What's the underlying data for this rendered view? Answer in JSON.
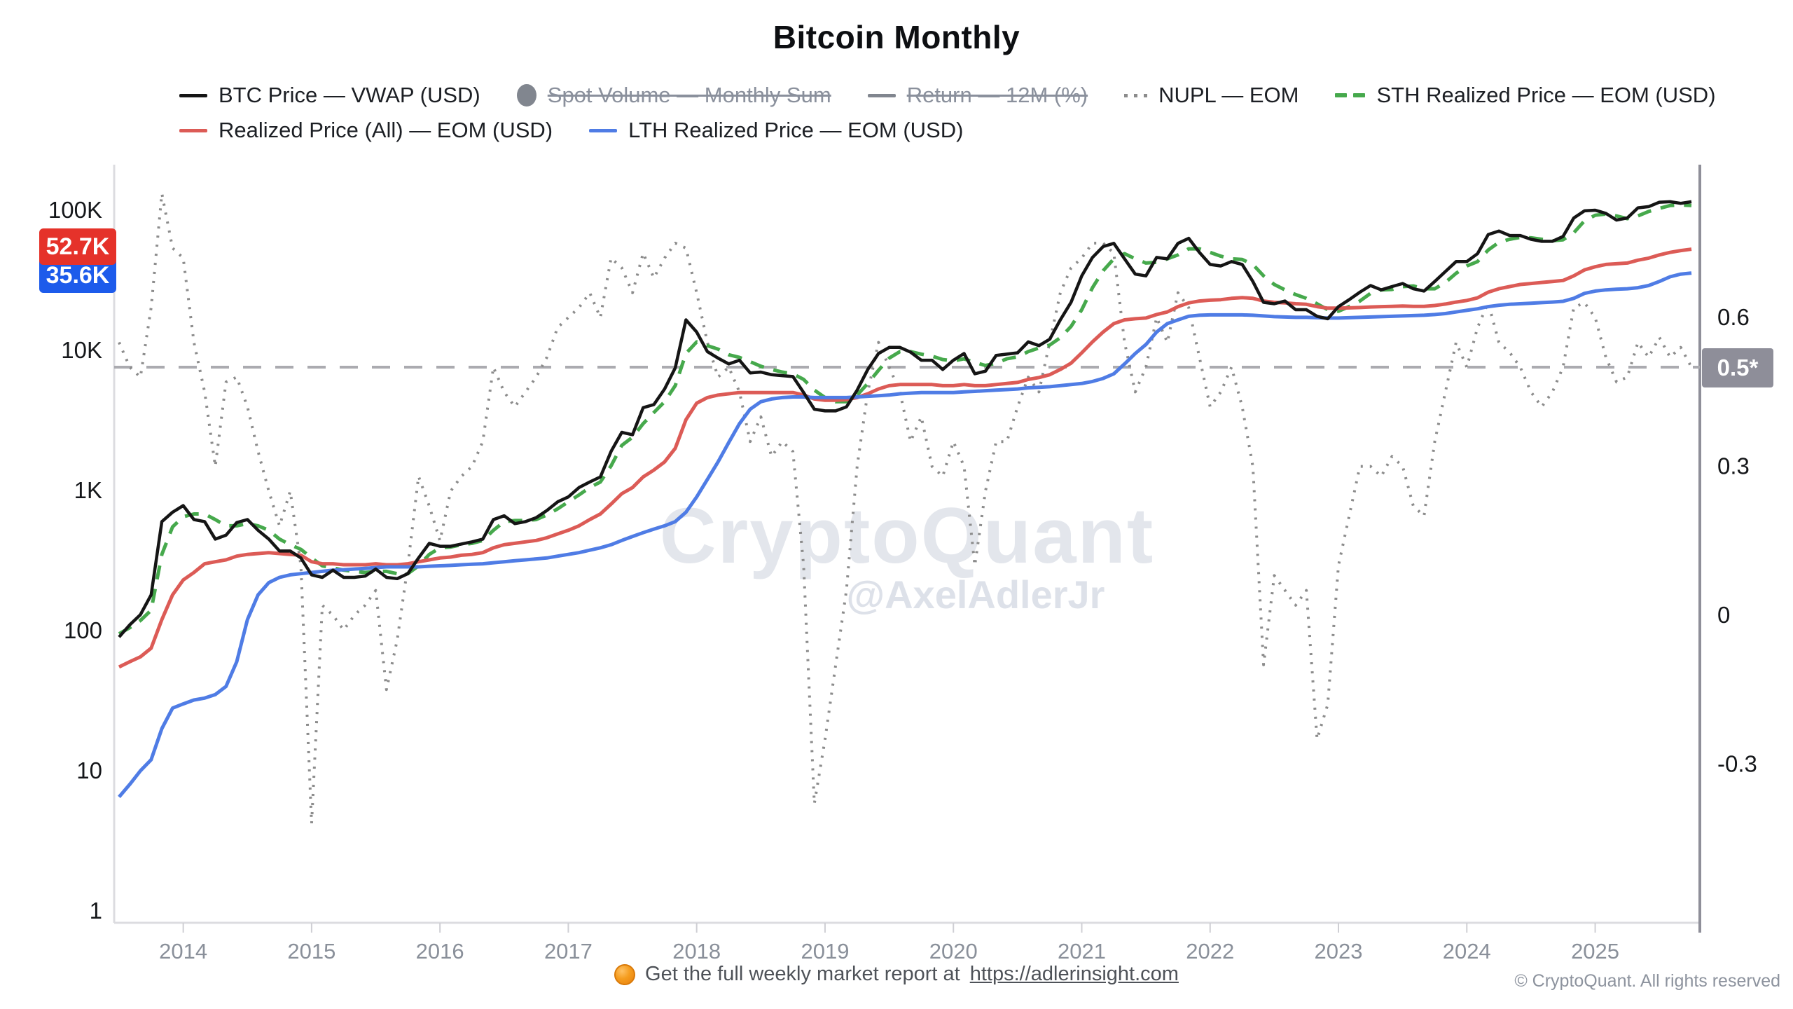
{
  "title": "Bitcoin Monthly",
  "legend": {
    "rows": [
      [
        {
          "label": "BTC Price — VWAP (USD)",
          "marker": "line",
          "color": "#151515",
          "disabled": false
        },
        {
          "label": "Spot Volume — Monthly Sum",
          "marker": "circle",
          "color": "#81868f",
          "disabled": true
        },
        {
          "label": "Return — 12M (%)",
          "marker": "line",
          "color": "#81868f",
          "disabled": true
        },
        {
          "label": "NUPL — EOM",
          "marker": "dots",
          "color": "#8c8c8c",
          "disabled": false
        },
        {
          "label": "STH Realized Price — EOM (USD)",
          "marker": "dashes",
          "color": "#46a94c",
          "disabled": false
        }
      ],
      [
        {
          "label": "Realized Price (All) — EOM (USD)",
          "marker": "line",
          "color": "#dc5b56",
          "disabled": false
        },
        {
          "label": "LTH Realized Price — EOM (USD)",
          "marker": "line",
          "color": "#4f7ce5",
          "disabled": false
        }
      ]
    ]
  },
  "badges": {
    "realized_price_last": "52.7K",
    "realized_price_color": "#e5322a",
    "lth_realized_last": "35.6K",
    "lth_realized_color": "#1d5beb",
    "nupl_last": "0.5*",
    "nupl_badge_color": "#8e8e99"
  },
  "watermark": {
    "brand": "CryptoQuant",
    "handle": "@AxelAdlerJr"
  },
  "footer": {
    "report_text": "Get the full weekly market report at",
    "report_url": "https://adlerinsight.com",
    "copyright": "© CryptoQuant. All rights reserved"
  },
  "chart_data": {
    "type": "line",
    "title": "Bitcoin Monthly",
    "x_start": "2013-07",
    "x_end": "2025-10",
    "x_freq": "monthly",
    "x_tick_labels": [
      "2014",
      "2015",
      "2016",
      "2017",
      "2018",
      "2019",
      "2020",
      "2021",
      "2022",
      "2023",
      "2024",
      "2025"
    ],
    "left_axis": {
      "scale": "log",
      "range": [
        1,
        150000
      ],
      "ticks": [
        {
          "label": "100K",
          "value": 100000
        },
        {
          "label": "10K",
          "value": 10000
        },
        {
          "label": "1K",
          "value": 1000
        },
        {
          "label": "100",
          "value": 100
        },
        {
          "label": "10",
          "value": 10
        },
        {
          "label": "1",
          "value": 1
        }
      ]
    },
    "right_axis": {
      "scale": "linear",
      "range": [
        -0.45,
        0.9
      ],
      "ticks": [
        {
          "label": "0.6",
          "value": 0.6
        },
        {
          "label": "0.3",
          "value": 0.3
        },
        {
          "label": "0",
          "value": 0
        },
        {
          "label": "-0.3",
          "value": -0.3
        }
      ]
    },
    "reference_line": {
      "axis": "right",
      "value": 0.5,
      "label": "0.5*",
      "style": "dashed",
      "color": "#ababb0"
    },
    "grid": false,
    "legend_position": "top",
    "hidden_series": [
      "Spot Volume — Monthly Sum",
      "Return — 12M (%)"
    ],
    "series": [
      {
        "name": "NUPL — EOM",
        "axis": "right",
        "color": "#8c8c8c",
        "width": 4,
        "dash": "dotted",
        "values_by_year": {
          "2013": [
            0.55,
            0.5,
            0.48,
            0.62,
            0.85,
            0.74
          ],
          "2014": [
            0.72,
            0.55,
            0.45,
            0.3,
            0.47,
            0.48,
            0.42,
            0.33,
            0.25,
            0.18,
            0.25,
            0.1
          ],
          "2015": [
            -0.42,
            0.02,
            0.0,
            -0.03,
            0.0,
            0.02,
            0.05,
            -0.15,
            -0.05,
            0.1,
            0.28,
            0.22
          ],
          "2016": [
            0.15,
            0.25,
            0.28,
            0.3,
            0.35,
            0.5,
            0.45,
            0.42,
            0.45,
            0.48,
            0.52,
            0.58
          ],
          "2017": [
            0.6,
            0.62,
            0.65,
            0.6,
            0.72,
            0.7,
            0.65,
            0.73,
            0.68,
            0.72,
            0.75,
            0.74
          ],
          "2018": [
            0.65,
            0.55,
            0.48,
            0.5,
            0.45,
            0.35,
            0.4,
            0.32,
            0.35,
            0.33,
            0.1,
            -0.38
          ],
          "2019": [
            -0.25,
            -0.1,
            0.05,
            0.3,
            0.45,
            0.55,
            0.5,
            0.45,
            0.35,
            0.4,
            0.3,
            0.28
          ],
          "2020": [
            0.35,
            0.3,
            0.1,
            0.25,
            0.35,
            0.35,
            0.42,
            0.48,
            0.45,
            0.55,
            0.65,
            0.7
          ],
          "2021": [
            0.72,
            0.75,
            0.75,
            0.73,
            0.55,
            0.45,
            0.5,
            0.6,
            0.55,
            0.65,
            0.62,
            0.52
          ],
          "2022": [
            0.42,
            0.45,
            0.5,
            0.42,
            0.3,
            -0.1,
            0.08,
            0.05,
            0.02,
            0.05,
            -0.25,
            -0.18
          ],
          "2023": [
            0.1,
            0.2,
            0.3,
            0.3,
            0.28,
            0.32,
            0.3,
            0.22,
            0.2,
            0.35,
            0.45,
            0.55
          ],
          "2024": [
            0.5,
            0.58,
            0.63,
            0.55,
            0.53,
            0.5,
            0.45,
            0.42,
            0.45,
            0.5,
            0.62,
            0.63
          ],
          "2025": [
            0.6,
            0.52,
            0.47,
            0.48,
            0.55,
            0.52,
            0.56,
            0.52,
            0.54,
            0.5
          ]
        }
      },
      {
        "name": "STH Realized Price — EOM (USD)",
        "axis": "left",
        "color": "#46a94c",
        "width": 5,
        "dash": "dashed",
        "values_by_year": {
          "2013": [
            95,
            105,
            118,
            140,
            350,
            550
          ],
          "2014": [
            650,
            680,
            680,
            620,
            560,
            560,
            580,
            560,
            520,
            450,
            410,
            380
          ],
          "2015": [
            330,
            290,
            280,
            270,
            265,
            260,
            265,
            265,
            255,
            255,
            290,
            350
          ],
          "2016": [
            390,
            395,
            410,
            420,
            440,
            520,
            600,
            610,
            610,
            620,
            670,
            740
          ],
          "2017": [
            830,
            930,
            1050,
            1150,
            1500,
            2100,
            2400,
            3000,
            3600,
            4300,
            5600,
            9500
          ],
          "2018": [
            11500,
            10800,
            10200,
            9300,
            8900,
            8300,
            7700,
            7300,
            7000,
            6800,
            6200,
            5200
          ],
          "2019": [
            4600,
            4300,
            4300,
            4800,
            5800,
            7200,
            8800,
            9800,
            9800,
            9400,
            9100,
            8600
          ],
          "2020": [
            8400,
            8700,
            8200,
            7800,
            8100,
            8700,
            9000,
            9800,
            10400,
            10900,
            12300,
            14800
          ],
          "2021": [
            19500,
            28000,
            37000,
            45000,
            49000,
            45000,
            42000,
            42500,
            45000,
            48000,
            53000,
            53000
          ],
          "2022": [
            50000,
            47000,
            45000,
            44500,
            41000,
            34000,
            29500,
            27000,
            25000,
            23500,
            21500,
            19500
          ],
          "2023": [
            19000,
            20500,
            22500,
            25500,
            27000,
            27200,
            28500,
            28800,
            27500,
            27500,
            30500,
            35500
          ],
          "2024": [
            40000,
            43000,
            52000,
            59000,
            62000,
            64000,
            63500,
            62000,
            60500,
            61500,
            69000,
            84000
          ],
          "2025": [
            92000,
            94000,
            91000,
            87000,
            91000,
            98000,
            103000,
            108000,
            109000,
            108000
          ]
        }
      },
      {
        "name": "Realized Price (All) — EOM (USD)",
        "axis": "left",
        "color": "#dc5b56",
        "width": 5,
        "dash": "solid",
        "values_by_year": {
          "2013": [
            55,
            60,
            65,
            75,
            120,
            180
          ],
          "2014": [
            230,
            260,
            300,
            310,
            320,
            340,
            350,
            355,
            360,
            355,
            350,
            345
          ],
          "2015": [
            310,
            300,
            300,
            295,
            295,
            295,
            300,
            295,
            295,
            300,
            310,
            320
          ],
          "2016": [
            330,
            335,
            345,
            350,
            360,
            390,
            410,
            420,
            430,
            440,
            460,
            490
          ],
          "2017": [
            520,
            560,
            620,
            680,
            800,
            950,
            1050,
            1250,
            1400,
            1600,
            2000,
            3200
          ],
          "2018": [
            4200,
            4600,
            4800,
            4900,
            5000,
            5000,
            5000,
            5000,
            5000,
            5000,
            4800,
            4500
          ],
          "2019": [
            4400,
            4400,
            4450,
            4600,
            4900,
            5300,
            5600,
            5700,
            5700,
            5700,
            5700,
            5600
          ],
          "2020": [
            5600,
            5700,
            5600,
            5600,
            5700,
            5800,
            5900,
            6200,
            6400,
            6700,
            7300,
            8100
          ],
          "2021": [
            9600,
            11500,
            13500,
            15500,
            16500,
            16800,
            17000,
            18000,
            18800,
            20500,
            21800,
            22500
          ],
          "2022": [
            22800,
            23000,
            23500,
            23800,
            23500,
            22500,
            22000,
            21800,
            21500,
            21300,
            20500,
            20000
          ],
          "2023": [
            20000,
            20100,
            20200,
            20400,
            20500,
            20600,
            20700,
            20600,
            20600,
            20900,
            21400,
            22100
          ],
          "2024": [
            22700,
            23700,
            26000,
            27500,
            28500,
            29500,
            30000,
            30500,
            31000,
            31500,
            34000,
            37500
          ],
          "2025": [
            39500,
            41000,
            41500,
            42000,
            44000,
            45500,
            48000,
            50000,
            51500,
            52700
          ]
        }
      },
      {
        "name": "LTH Realized Price — EOM (USD)",
        "axis": "left",
        "color": "#4f7ce5",
        "width": 5,
        "dash": "solid",
        "values_by_year": {
          "2013": [
            6.5,
            8,
            10,
            12,
            20,
            28
          ],
          "2014": [
            30,
            32,
            33,
            35,
            40,
            60,
            120,
            180,
            220,
            240,
            250,
            255
          ],
          "2015": [
            260,
            265,
            270,
            272,
            275,
            278,
            282,
            285,
            285,
            285,
            285,
            288
          ],
          "2016": [
            290,
            292,
            295,
            298,
            300,
            305,
            310,
            315,
            320,
            325,
            330,
            340
          ],
          "2017": [
            350,
            360,
            375,
            390,
            410,
            440,
            470,
            500,
            530,
            560,
            600,
            700
          ],
          "2018": [
            900,
            1200,
            1600,
            2200,
            3000,
            3800,
            4300,
            4500,
            4600,
            4650,
            4650,
            4600
          ],
          "2019": [
            4600,
            4600,
            4600,
            4650,
            4700,
            4750,
            4800,
            4900,
            4950,
            5000,
            5000,
            5000
          ],
          "2020": [
            5000,
            5050,
            5100,
            5150,
            5200,
            5250,
            5300,
            5400,
            5450,
            5500,
            5600,
            5700
          ],
          "2021": [
            5800,
            6000,
            6300,
            6800,
            8000,
            9500,
            11000,
            13500,
            15500,
            16500,
            17500,
            17800
          ],
          "2022": [
            17900,
            17900,
            17900,
            17900,
            17800,
            17600,
            17400,
            17300,
            17200,
            17200,
            17100,
            17000
          ],
          "2023": [
            17000,
            17100,
            17200,
            17300,
            17400,
            17500,
            17600,
            17700,
            17800,
            18000,
            18300,
            18800
          ],
          "2024": [
            19300,
            19800,
            20500,
            21000,
            21300,
            21500,
            21700,
            21900,
            22100,
            22400,
            23500,
            25500
          ],
          "2025": [
            26500,
            27000,
            27300,
            27500,
            28000,
            29000,
            31000,
            33500,
            35000,
            35600
          ]
        }
      },
      {
        "name": "BTC Price — VWAP (USD)",
        "axis": "left",
        "color": "#151515",
        "width": 4.5,
        "dash": "solid",
        "values_by_year": {
          "2013": [
            90,
            110,
            130,
            180,
            600,
            700
          ],
          "2014": [
            780,
            620,
            600,
            450,
            480,
            590,
            620,
            520,
            450,
            370,
            370,
            330
          ],
          "2015": [
            250,
            240,
            270,
            240,
            240,
            245,
            275,
            240,
            235,
            255,
            330,
            420
          ],
          "2016": [
            400,
            400,
            415,
            430,
            450,
            620,
            660,
            580,
            600,
            640,
            720,
            830
          ],
          "2017": [
            900,
            1050,
            1150,
            1250,
            1900,
            2600,
            2500,
            3900,
            4100,
            5300,
            7500,
            16500
          ],
          "2018": [
            13500,
            9800,
            8800,
            8000,
            8500,
            6900,
            7000,
            6700,
            6600,
            6500,
            5000,
            3800
          ],
          "2019": [
            3700,
            3700,
            3950,
            5200,
            7300,
            9500,
            10500,
            10500,
            9700,
            8500,
            8500,
            7300
          ],
          "2020": [
            8500,
            9500,
            6800,
            7100,
            9200,
            9400,
            9600,
            11500,
            10800,
            12000,
            16500,
            22000
          ],
          "2021": [
            34000,
            46000,
            55000,
            58000,
            45000,
            35000,
            34000,
            46000,
            45000,
            58000,
            63000,
            50000
          ],
          "2022": [
            41000,
            40000,
            43000,
            41000,
            31000,
            22000,
            21500,
            22500,
            19500,
            19500,
            17500,
            16800
          ],
          "2023": [
            20500,
            23000,
            26000,
            29000,
            27000,
            28500,
            30000,
            27500,
            26500,
            31000,
            36500,
            43000
          ],
          "2024": [
            43000,
            49000,
            67000,
            71000,
            66000,
            66000,
            62000,
            60000,
            60000,
            65000,
            88000,
            99000
          ],
          "2025": [
            100000,
            95000,
            85000,
            88000,
            104000,
            106000,
            114000,
            115000,
            112000,
            115000
          ]
        }
      }
    ]
  }
}
